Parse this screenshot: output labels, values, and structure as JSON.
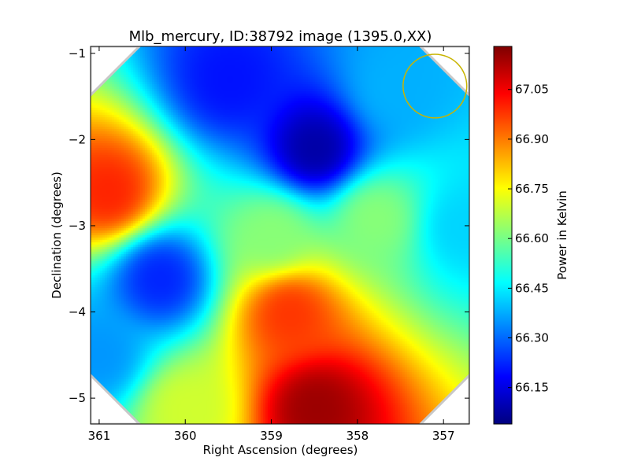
{
  "chart_data": {
    "type": "heatmap",
    "title": "Mlb_mercury, ID:38792 image (1395.0,XX)",
    "xlabel": "Right Ascension (degrees)",
    "ylabel": "Declination (degrees)",
    "xlim": [
      361.1,
      356.7
    ],
    "ylim": [
      -5.3,
      -0.92
    ],
    "xticks": [
      361,
      360,
      359,
      358,
      357
    ],
    "yticks": [
      -1,
      -2,
      -3,
      -4,
      -5
    ],
    "grid": false,
    "colorbar": {
      "label": "Power in Kelvin",
      "range": [
        66.04,
        67.18
      ],
      "ticks": [
        "66.15",
        "66.30",
        "66.45",
        "66.60",
        "66.75",
        "66.90",
        "67.05"
      ],
      "colormap": "jet",
      "colors": [
        "#00007f",
        "#0000ff",
        "#007fff",
        "#00ffff",
        "#7fff7f",
        "#ffff00",
        "#ff7f00",
        "#ff0000",
        "#7f0000"
      ]
    },
    "features": [
      {
        "ra": 360.9,
        "dec": -2.6,
        "value": 67.0
      },
      {
        "ra": 358.5,
        "dec": -2.1,
        "value": 66.08
      },
      {
        "ra": 359.5,
        "dec": -1.3,
        "value": 66.2
      },
      {
        "ra": 360.3,
        "dec": -3.6,
        "value": 66.22
      },
      {
        "ra": 358.5,
        "dec": -5.1,
        "value": 67.15
      },
      {
        "ra": 358.8,
        "dec": -4.0,
        "value": 66.98
      },
      {
        "ra": 357.8,
        "dec": -2.9,
        "value": 66.62
      },
      {
        "ra": 356.8,
        "dec": -3.0,
        "value": 66.42
      },
      {
        "ra": 360.0,
        "dec": -5.1,
        "value": 66.7
      },
      {
        "ra": 359.0,
        "dec": -3.1,
        "value": 66.62
      },
      {
        "ra": 357.6,
        "dec": -1.4,
        "value": 66.38
      },
      {
        "ra": 361.0,
        "dec": -4.5,
        "value": 66.35
      }
    ],
    "beam_circle": {
      "ra": 357.1,
      "dec": -1.38,
      "radius_deg": 0.37,
      "color": "#c8b400"
    }
  }
}
